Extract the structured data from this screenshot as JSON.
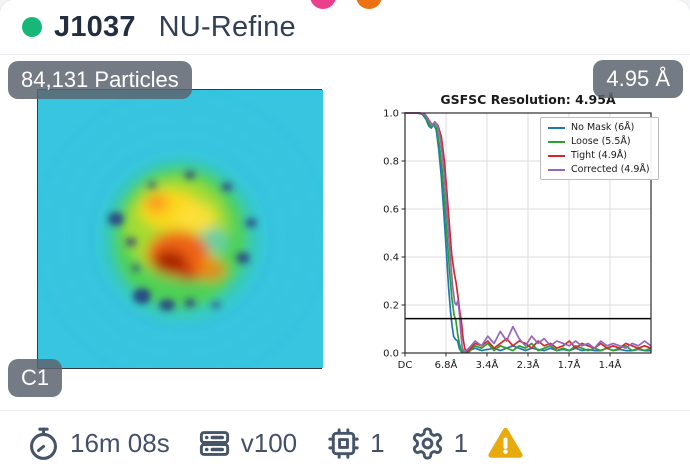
{
  "header": {
    "job_id": "J1037",
    "job_type": "NU-Refine",
    "status_color": "#17b877",
    "indicator_pink": "#ed3e8e",
    "indicator_orange": "#ee7214"
  },
  "image_panel": {
    "particles_badge": "84,131 Particles",
    "symmetry_badge": "C1",
    "description": "particle-density-map",
    "colors": {
      "background_cyan": "#38c5df",
      "mid_green": "#52d24a",
      "hot_core_red": "#a21803",
      "badge_bg": "rgba(93,100,110,0.85)"
    }
  },
  "resolution_badge": "4.95 Å",
  "chart_data": {
    "type": "line",
    "title": "GSFSC Resolution: 4.95Å",
    "xlabel": "",
    "ylabel": "",
    "ylim": [
      0.0,
      1.0
    ],
    "grid": true,
    "legend_position": "upper right",
    "threshold": 0.143,
    "x_tick_labels": [
      "DC",
      "6.8Å",
      "3.4Å",
      "2.3Å",
      "1.7Å",
      "1.4Å"
    ],
    "x_tick_positions": [
      0,
      0.1667,
      0.3333,
      0.5,
      0.6667,
      0.8333
    ],
    "y_tick_labels": [
      "0.0",
      "0.2",
      "0.4",
      "0.6",
      "0.8",
      "1.0"
    ],
    "y_ticks": [
      0.0,
      0.2,
      0.4,
      0.6,
      0.8,
      1.0
    ],
    "series": [
      {
        "name": "No Mask (6Å)",
        "color": "#1f77b4",
        "head": [
          [
            0,
            1
          ],
          [
            0.05,
            1
          ],
          [
            0.07,
            0.995
          ],
          [
            0.085,
            0.975
          ],
          [
            0.097,
            0.945
          ],
          [
            0.107,
            0.937
          ],
          [
            0.117,
            0.952
          ],
          [
            0.127,
            0.93
          ],
          [
            0.137,
            0.85
          ],
          [
            0.147,
            0.74
          ],
          [
            0.157,
            0.6
          ],
          [
            0.167,
            0.44
          ],
          [
            0.177,
            0.28
          ],
          [
            0.185,
            0.175
          ],
          [
            0.191,
            0.115
          ],
          [
            0.198,
            0.068
          ],
          [
            0.206,
            0.056
          ],
          [
            0.214,
            0.05
          ],
          [
            0.221,
            0.018
          ],
          [
            0.23,
            0.004
          ],
          [
            0.245,
            0.003
          ]
        ],
        "tail_start": 0.26,
        "tail_step": 0.0255,
        "tail": [
          0.01,
          0.02,
          0.01,
          0.015,
          0.02,
          0.01,
          0.02,
          0.03,
          0.02,
          0.01,
          0.02,
          0.015,
          0.01,
          0.02,
          0.01,
          0.015,
          0.01,
          0.02,
          0.01,
          0.015,
          0.01,
          0.01,
          0.02,
          0.01,
          0.015,
          0.01,
          0.01,
          0.015,
          0.01,
          0.01
        ]
      },
      {
        "name": "Loose (5.5Å)",
        "color": "#2ca02c",
        "head": [
          [
            0,
            1
          ],
          [
            0.055,
            1
          ],
          [
            0.078,
            0.993
          ],
          [
            0.093,
            0.965
          ],
          [
            0.105,
            0.942
          ],
          [
            0.116,
            0.956
          ],
          [
            0.128,
            0.938
          ],
          [
            0.14,
            0.868
          ],
          [
            0.15,
            0.77
          ],
          [
            0.16,
            0.645
          ],
          [
            0.17,
            0.5
          ],
          [
            0.18,
            0.355
          ],
          [
            0.19,
            0.235
          ],
          [
            0.199,
            0.16
          ],
          [
            0.207,
            0.135
          ],
          [
            0.214,
            0.08
          ],
          [
            0.221,
            0.04
          ],
          [
            0.228,
            0.012
          ],
          [
            0.24,
            0.004
          ]
        ],
        "tail_start": 0.26,
        "tail_step": 0.0255,
        "tail": [
          0.005,
          0.03,
          0.02,
          0.04,
          0.01,
          0.03,
          0.02,
          0.01,
          0.03,
          0.02,
          0.04,
          0.01,
          0.02,
          0.03,
          0.01,
          0.02,
          0.01,
          0.03,
          0.02,
          0.01,
          0.02,
          0.01,
          0.02,
          0.01,
          0.02,
          0.03,
          0.01,
          0.02,
          0.01,
          0.02
        ]
      },
      {
        "name": "Tight (4.9Å)",
        "color": "#d62728",
        "head": [
          [
            0,
            1
          ],
          [
            0.06,
            1
          ],
          [
            0.083,
            0.993
          ],
          [
            0.098,
            0.97
          ],
          [
            0.11,
            0.95
          ],
          [
            0.121,
            0.963
          ],
          [
            0.134,
            0.948
          ],
          [
            0.148,
            0.9
          ],
          [
            0.16,
            0.8
          ],
          [
            0.17,
            0.675
          ],
          [
            0.18,
            0.54
          ],
          [
            0.19,
            0.41
          ],
          [
            0.2,
            0.335
          ],
          [
            0.208,
            0.29
          ],
          [
            0.216,
            0.23
          ],
          [
            0.223,
            0.17
          ],
          [
            0.229,
            0.135
          ],
          [
            0.236,
            0.06
          ],
          [
            0.243,
            0.018
          ],
          [
            0.252,
            0.005
          ]
        ],
        "tail_start": 0.26,
        "tail_step": 0.0255,
        "tail": [
          0.01,
          0.04,
          0.03,
          0.05,
          0.02,
          0.04,
          0.06,
          0.03,
          0.05,
          0.04,
          0.02,
          0.05,
          0.03,
          0.04,
          0.02,
          0.03,
          0.05,
          0.02,
          0.04,
          0.03,
          0.02,
          0.04,
          0.02,
          0.03,
          0.02,
          0.04,
          0.03,
          0.02,
          0.03,
          0.02
        ]
      },
      {
        "name": "Corrected (4.9Å)",
        "color": "#9467bd",
        "head": [
          [
            0,
            1
          ],
          [
            0.06,
            1
          ],
          [
            0.083,
            0.993
          ],
          [
            0.098,
            0.968
          ],
          [
            0.11,
            0.948
          ],
          [
            0.121,
            0.962
          ],
          [
            0.133,
            0.945
          ],
          [
            0.145,
            0.885
          ],
          [
            0.155,
            0.795
          ],
          [
            0.165,
            0.67
          ],
          [
            0.175,
            0.53
          ],
          [
            0.185,
            0.39
          ],
          [
            0.194,
            0.275
          ],
          [
            0.202,
            0.21
          ],
          [
            0.209,
            0.2
          ],
          [
            0.215,
            0.22
          ],
          [
            0.221,
            0.165
          ],
          [
            0.227,
            0.085
          ],
          [
            0.233,
            0.02
          ],
          [
            0.242,
            0.005
          ]
        ],
        "tail_start": 0.26,
        "tail_step": 0.0255,
        "tail": [
          0.02,
          0.05,
          0.03,
          0.07,
          0.04,
          0.09,
          0.05,
          0.11,
          0.06,
          0.03,
          0.07,
          0.04,
          0.06,
          0.03,
          0.05,
          0.04,
          0.03,
          0.05,
          0.03,
          0.04,
          0.02,
          0.05,
          0.03,
          0.04,
          0.03,
          0.02,
          0.04,
          0.03,
          0.05,
          0.03
        ]
      }
    ]
  },
  "footer": {
    "runtime": "16m 08s",
    "lane": "v100",
    "gpu_count": "1",
    "params_count": "1",
    "warning_color": "#e7ab0d",
    "icon_color": "#475569",
    "icons": [
      "timer-icon",
      "server-icon",
      "cpu-icon",
      "gear-icon",
      "warning-icon"
    ]
  }
}
